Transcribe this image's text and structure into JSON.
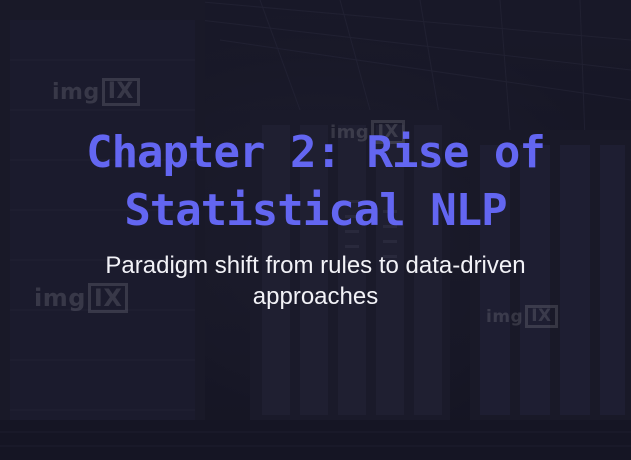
{
  "slide": {
    "title": "Chapter 2: Rise of Statistical NLP",
    "subtitle": "Paradigm shift from rules to data-driven approaches"
  },
  "watermark": {
    "prefix": "img",
    "boxed": "IX"
  },
  "colors": {
    "title": "#6366f1",
    "subtitle": "#f2f2f7",
    "background": "#171724"
  }
}
